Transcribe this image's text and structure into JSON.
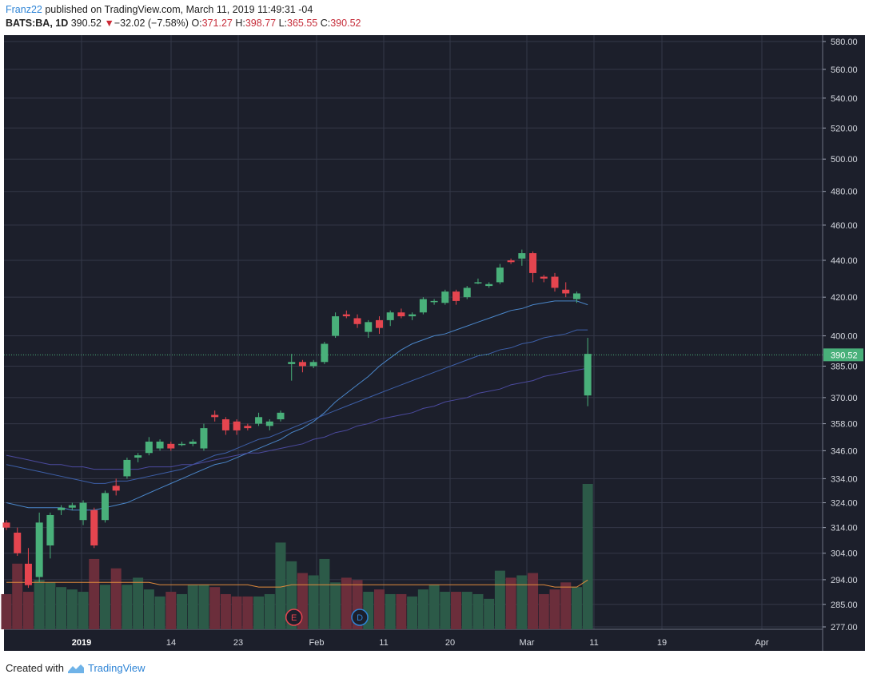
{
  "header": {
    "author": "Franz22",
    "published_text": "published on TradingView.com, March 11, 2019 11:49:31 -04",
    "symbol": "BATS:BA, 1D",
    "last": "390.52",
    "change_arrow": "▼",
    "change": "−32.02 (−7.58%)",
    "o_label": "O:",
    "o_value": "371.27",
    "h_label": "H:",
    "h_value": "398.77",
    "l_label": "L:",
    "l_value": "365.55",
    "c_label": "C:",
    "c_value": "390.52"
  },
  "footer": {
    "created_with": "Created with",
    "brand": "TradingView"
  },
  "colors": {
    "background": "#1c1f2b",
    "grid": "#343848",
    "up": "#49b07a",
    "down": "#e5454f",
    "vol_up": "#2c5a48",
    "vol_down": "#6b2e3b",
    "ma_fast": "#4a86c9",
    "ma_mid": "#3d5fa8",
    "ma_slow": "#4b4a9e",
    "vol_ma": "#e08a3c"
  },
  "chart_data": {
    "type": "candlestick",
    "symbol": "BATS:BA",
    "interval": "1D",
    "y_axis": {
      "ticks": [
        "580.00",
        "560.00",
        "540.00",
        "520.00",
        "500.00",
        "480.00",
        "460.00",
        "440.00",
        "420.00",
        "400.00",
        "385.00",
        "370.00",
        "358.00",
        "346.00",
        "334.00",
        "324.00",
        "314.00",
        "304.00",
        "294.00",
        "285.00",
        "277.00"
      ],
      "scale": "logarithmic"
    },
    "x_axis": {
      "labels": [
        "2019",
        "14",
        "23",
        "Feb",
        "11",
        "20",
        "Mar",
        "11",
        "19",
        "Apr"
      ]
    },
    "last_price_label": "390.52",
    "event_markers": [
      {
        "label": "E",
        "index": 26
      },
      {
        "label": "D",
        "index": 32
      }
    ],
    "candles": [
      {
        "o": 316,
        "h": 317,
        "l": 313,
        "c": 314
      },
      {
        "o": 312,
        "h": 314,
        "l": 303,
        "c": 304
      },
      {
        "o": 300,
        "h": 306,
        "l": 291,
        "c": 292
      },
      {
        "o": 295,
        "h": 320,
        "l": 293,
        "c": 316
      },
      {
        "o": 307,
        "h": 320,
        "l": 302,
        "c": 319
      },
      {
        "o": 321,
        "h": 323,
        "l": 319,
        "c": 322
      },
      {
        "o": 322,
        "h": 324,
        "l": 321,
        "c": 323
      },
      {
        "o": 317,
        "h": 325,
        "l": 315,
        "c": 324
      },
      {
        "o": 321,
        "h": 322,
        "l": 306,
        "c": 307
      },
      {
        "o": 317,
        "h": 329,
        "l": 316,
        "c": 328
      },
      {
        "o": 331,
        "h": 334,
        "l": 327,
        "c": 329
      },
      {
        "o": 335,
        "h": 343,
        "l": 334,
        "c": 342
      },
      {
        "o": 343,
        "h": 345,
        "l": 341,
        "c": 344
      },
      {
        "o": 345,
        "h": 352,
        "l": 344,
        "c": 350
      },
      {
        "o": 347,
        "h": 351,
        "l": 346,
        "c": 350
      },
      {
        "o": 349,
        "h": 350,
        "l": 346,
        "c": 347
      },
      {
        "o": 349,
        "h": 350,
        "l": 348,
        "c": 349
      },
      {
        "o": 349,
        "h": 351,
        "l": 348,
        "c": 350
      },
      {
        "o": 347,
        "h": 358,
        "l": 346,
        "c": 356
      },
      {
        "o": 362,
        "h": 364,
        "l": 359,
        "c": 361
      },
      {
        "o": 360,
        "h": 361,
        "l": 353,
        "c": 355
      },
      {
        "o": 359,
        "h": 360,
        "l": 353,
        "c": 355
      },
      {
        "o": 357,
        "h": 358,
        "l": 355,
        "c": 356
      },
      {
        "o": 358,
        "h": 363,
        "l": 357,
        "c": 361
      },
      {
        "o": 357,
        "h": 360,
        "l": 355,
        "c": 359
      },
      {
        "o": 360,
        "h": 364,
        "l": 359,
        "c": 363
      },
      {
        "o": 386,
        "h": 391,
        "l": 378,
        "c": 387
      },
      {
        "o": 387,
        "h": 388,
        "l": 382,
        "c": 385
      },
      {
        "o": 385,
        "h": 388,
        "l": 384,
        "c": 387
      },
      {
        "o": 387,
        "h": 397,
        "l": 386,
        "c": 396
      },
      {
        "o": 400,
        "h": 412,
        "l": 399,
        "c": 410
      },
      {
        "o": 411,
        "h": 413,
        "l": 409,
        "c": 410
      },
      {
        "o": 409,
        "h": 411,
        "l": 404,
        "c": 406
      },
      {
        "o": 402,
        "h": 408,
        "l": 399,
        "c": 407
      },
      {
        "o": 408,
        "h": 410,
        "l": 401,
        "c": 404
      },
      {
        "o": 408,
        "h": 413,
        "l": 405,
        "c": 412
      },
      {
        "o": 412,
        "h": 414,
        "l": 409,
        "c": 410
      },
      {
        "o": 410,
        "h": 412,
        "l": 408,
        "c": 411
      },
      {
        "o": 412,
        "h": 420,
        "l": 411,
        "c": 419
      },
      {
        "o": 418,
        "h": 419,
        "l": 416,
        "c": 418
      },
      {
        "o": 417,
        "h": 424,
        "l": 416,
        "c": 423
      },
      {
        "o": 423,
        "h": 424,
        "l": 416,
        "c": 418
      },
      {
        "o": 420,
        "h": 426,
        "l": 419,
        "c": 425
      },
      {
        "o": 428,
        "h": 430,
        "l": 427,
        "c": 428
      },
      {
        "o": 426,
        "h": 428,
        "l": 425,
        "c": 427
      },
      {
        "o": 428,
        "h": 438,
        "l": 427,
        "c": 436
      },
      {
        "o": 440,
        "h": 441,
        "l": 438,
        "c": 439
      },
      {
        "o": 441,
        "h": 446,
        "l": 437,
        "c": 444
      },
      {
        "o": 444,
        "h": 445,
        "l": 428,
        "c": 433
      },
      {
        "o": 431,
        "h": 432,
        "l": 428,
        "c": 430
      },
      {
        "o": 431,
        "h": 433,
        "l": 423,
        "c": 425
      },
      {
        "o": 424,
        "h": 428,
        "l": 420,
        "c": 422
      },
      {
        "o": 419,
        "h": 423,
        "l": 417,
        "c": 422
      },
      {
        "o": 371,
        "h": 399,
        "l": 366,
        "c": 391
      }
    ],
    "volume": [
      15,
      28,
      16,
      21,
      20,
      18,
      17,
      16,
      30,
      19,
      26,
      19,
      22,
      17,
      14,
      16,
      15,
      19,
      19,
      18,
      15,
      14,
      14,
      14,
      15,
      37,
      29,
      24,
      23,
      30,
      20,
      22,
      21,
      16,
      17,
      15,
      15,
      14,
      17,
      19,
      16,
      16,
      16,
      15,
      13,
      25,
      22,
      23,
      24,
      15,
      17,
      20,
      18,
      62
    ],
    "moving_averages": [
      {
        "name": "MA fast",
        "color": "#4a86c9",
        "values": [
          324,
          323,
          322,
          322,
          322,
          322,
          321,
          321,
          321,
          322,
          323,
          324,
          326,
          328,
          330,
          332,
          334,
          336,
          338,
          340,
          341,
          343,
          345,
          347,
          349,
          351,
          354,
          356,
          359,
          363,
          368,
          372,
          376,
          380,
          385,
          389,
          393,
          396,
          398,
          400,
          401,
          403,
          405,
          407,
          409,
          411,
          413,
          414,
          416,
          417,
          418,
          418,
          418,
          416
        ]
      },
      {
        "name": "MA mid",
        "color": "#3d5fa8",
        "values": [
          340,
          339,
          338,
          337,
          336,
          335,
          334,
          333,
          332,
          332,
          333,
          333,
          334,
          335,
          336,
          337,
          338,
          340,
          342,
          344,
          345,
          347,
          349,
          351,
          352,
          354,
          356,
          358,
          360,
          362,
          364,
          366,
          368,
          370,
          372,
          374,
          376,
          378,
          380,
          382,
          384,
          386,
          388,
          390,
          391,
          393,
          394,
          396,
          397,
          399,
          400,
          401,
          403,
          403
        ]
      },
      {
        "name": "MA slow",
        "color": "#4b4a9e",
        "values": [
          344,
          343,
          342,
          341,
          340,
          340,
          339,
          339,
          338,
          338,
          338,
          338,
          338,
          339,
          339,
          339,
          340,
          340,
          341,
          342,
          343,
          344,
          345,
          345,
          346,
          347,
          348,
          349,
          351,
          352,
          354,
          355,
          357,
          358,
          360,
          361,
          362,
          363,
          365,
          366,
          368,
          369,
          370,
          372,
          373,
          374,
          376,
          377,
          378,
          380,
          381,
          382,
          383,
          384
        ]
      }
    ],
    "volume_ma": {
      "name": "Volume MA",
      "color": "#e08a3c",
      "values": [
        20,
        20,
        20,
        20,
        20,
        20,
        20,
        20,
        20,
        20,
        20,
        20,
        20,
        20,
        19,
        19,
        19,
        19,
        19,
        19,
        19,
        19,
        19,
        18,
        18,
        18,
        19,
        19,
        19,
        19,
        19,
        19,
        19,
        19,
        19,
        19,
        19,
        19,
        19,
        19,
        19,
        19,
        19,
        19,
        19,
        19,
        19,
        19,
        19,
        19,
        18,
        18,
        18,
        21
      ]
    }
  }
}
